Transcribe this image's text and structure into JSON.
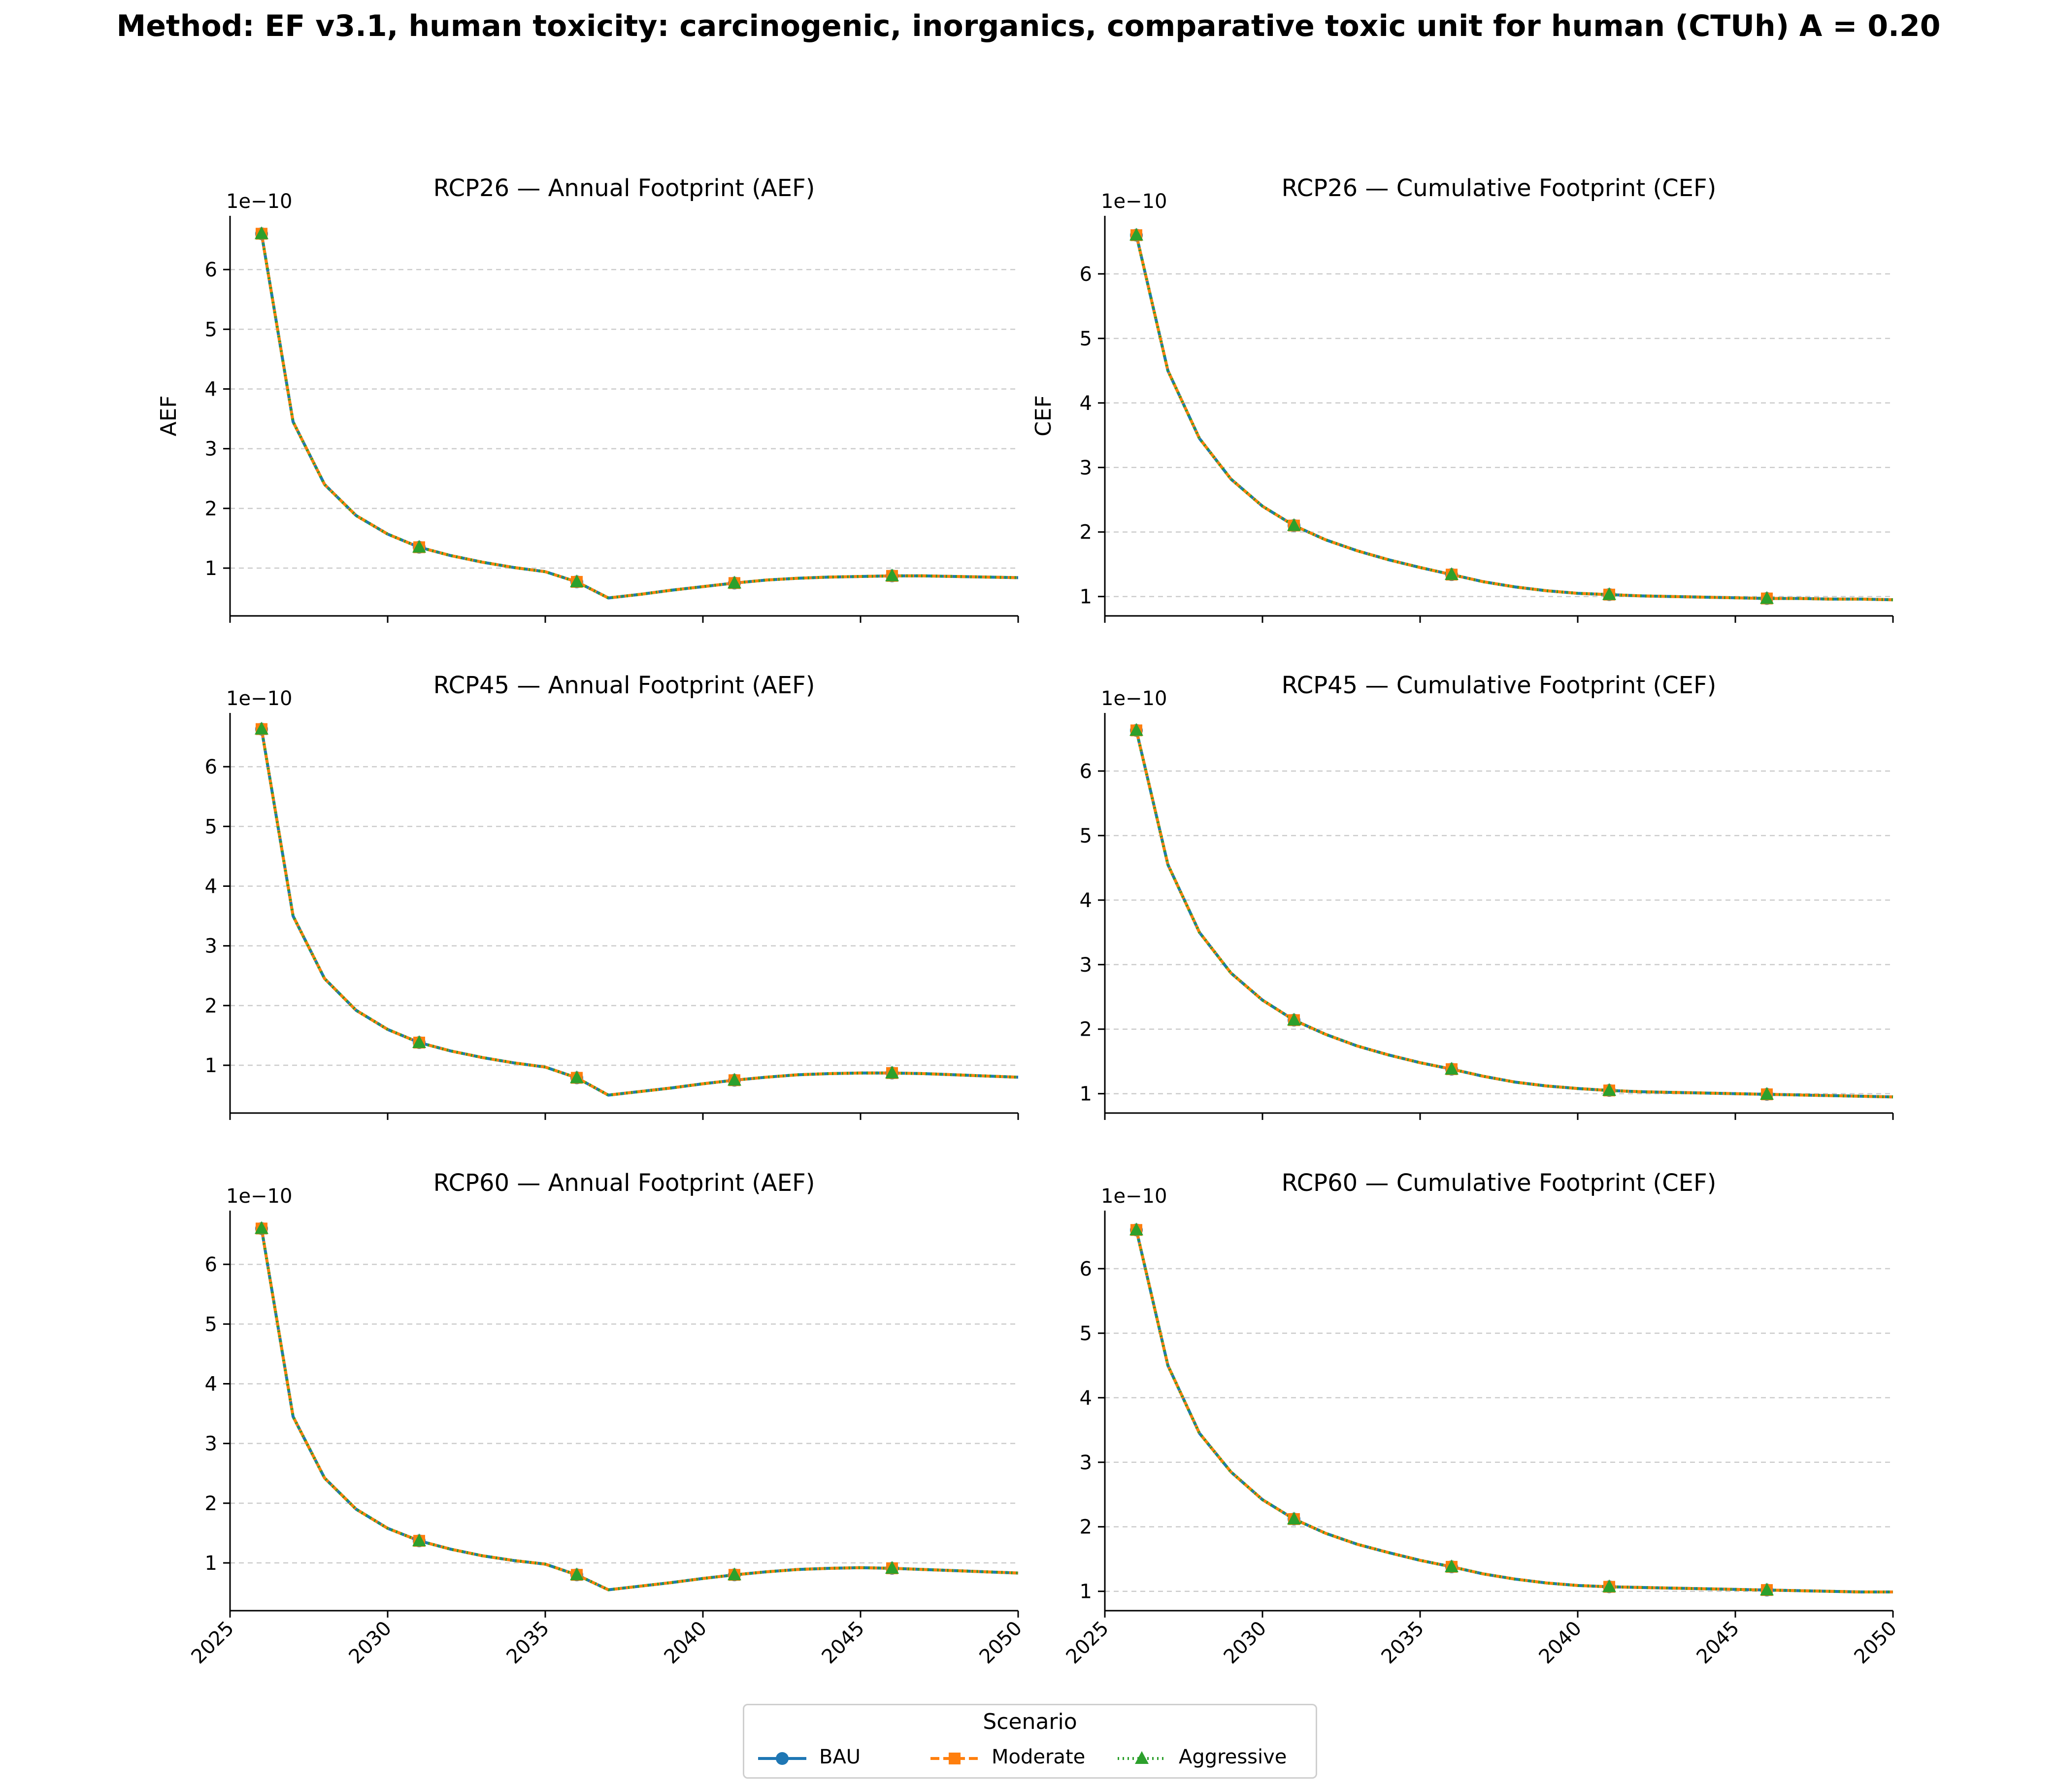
{
  "figure": {
    "title": "Method: EF v3.1, human toxicity: carcinogenic, inorganics, comparative toxic unit for human (CTUh) A = 0.20"
  },
  "legend": {
    "title": "Scenario",
    "entries": [
      {
        "label": "BAU",
        "color": "#1f77b4",
        "marker": "circle",
        "linestyle": "solid"
      },
      {
        "label": "Moderate",
        "color": "#ff7f0e",
        "marker": "square",
        "linestyle": "dashed"
      },
      {
        "label": "Aggressive",
        "color": "#2ca02c",
        "marker": "triangle",
        "linestyle": "dotted"
      }
    ]
  },
  "chart_data": [
    {
      "type": "line",
      "title": "RCP26 — Annual Footprint (AEF)",
      "xlabel": "",
      "ylabel": "AEF",
      "offset_text": "1e−10",
      "xlim": [
        2025,
        2050
      ],
      "ylim": [
        0.2,
        6.9
      ],
      "xticks": [
        2025,
        2030,
        2035,
        2040,
        2045,
        2050
      ],
      "yticks": [
        1,
        2,
        3,
        4,
        5,
        6
      ],
      "x": [
        2026,
        2027,
        2028,
        2029,
        2030,
        2031,
        2032,
        2033,
        2034,
        2035,
        2036,
        2037,
        2038,
        2039,
        2040,
        2041,
        2042,
        2043,
        2044,
        2045,
        2046,
        2047,
        2048,
        2049,
        2050
      ],
      "series": [
        {
          "name": "BAU",
          "values": [
            6.6,
            3.45,
            2.4,
            1.88,
            1.57,
            1.35,
            1.21,
            1.1,
            1.01,
            0.94,
            0.77,
            0.5,
            0.56,
            0.63,
            0.69,
            0.75,
            0.8,
            0.83,
            0.85,
            0.86,
            0.87,
            0.87,
            0.86,
            0.85,
            0.84
          ]
        },
        {
          "name": "Moderate",
          "values": [
            6.6,
            3.45,
            2.4,
            1.88,
            1.57,
            1.35,
            1.21,
            1.1,
            1.01,
            0.94,
            0.77,
            0.5,
            0.56,
            0.63,
            0.69,
            0.75,
            0.8,
            0.83,
            0.85,
            0.86,
            0.87,
            0.87,
            0.86,
            0.85,
            0.84
          ]
        },
        {
          "name": "Aggressive",
          "values": [
            6.6,
            3.45,
            2.4,
            1.88,
            1.57,
            1.35,
            1.21,
            1.1,
            1.01,
            0.94,
            0.77,
            0.5,
            0.56,
            0.63,
            0.69,
            0.75,
            0.8,
            0.83,
            0.85,
            0.86,
            0.87,
            0.87,
            0.86,
            0.85,
            0.84
          ]
        }
      ],
      "grid": "y-dashed"
    },
    {
      "type": "line",
      "title": "RCP26 — Cumulative Footprint (CEF)",
      "xlabel": "",
      "ylabel": "CEF",
      "offset_text": "1e−10",
      "xlim": [
        2025,
        2050
      ],
      "ylim": [
        0.7,
        6.9
      ],
      "xticks": [
        2025,
        2030,
        2035,
        2040,
        2045,
        2050
      ],
      "yticks": [
        1,
        2,
        3,
        4,
        5,
        6
      ],
      "x": [
        2026,
        2027,
        2028,
        2029,
        2030,
        2031,
        2032,
        2033,
        2034,
        2035,
        2036,
        2037,
        2038,
        2039,
        2040,
        2041,
        2042,
        2043,
        2044,
        2045,
        2046,
        2047,
        2048,
        2049,
        2050
      ],
      "series": [
        {
          "name": "BAU",
          "values": [
            6.6,
            4.5,
            3.45,
            2.82,
            2.4,
            2.1,
            1.88,
            1.71,
            1.57,
            1.45,
            1.34,
            1.23,
            1.15,
            1.09,
            1.05,
            1.03,
            1.01,
            1.0,
            0.99,
            0.98,
            0.97,
            0.97,
            0.96,
            0.96,
            0.95
          ]
        },
        {
          "name": "Moderate",
          "values": [
            6.6,
            4.5,
            3.45,
            2.82,
            2.4,
            2.1,
            1.88,
            1.71,
            1.57,
            1.45,
            1.34,
            1.23,
            1.15,
            1.09,
            1.05,
            1.03,
            1.01,
            1.0,
            0.99,
            0.98,
            0.97,
            0.97,
            0.96,
            0.96,
            0.95
          ]
        },
        {
          "name": "Aggressive",
          "values": [
            6.6,
            4.5,
            3.45,
            2.82,
            2.4,
            2.1,
            1.88,
            1.71,
            1.57,
            1.45,
            1.34,
            1.23,
            1.15,
            1.09,
            1.05,
            1.03,
            1.01,
            1.0,
            0.99,
            0.98,
            0.97,
            0.97,
            0.96,
            0.96,
            0.95
          ]
        }
      ],
      "grid": "y-dashed"
    },
    {
      "type": "line",
      "title": "RCP45 — Annual Footprint (AEF)",
      "xlabel": "",
      "ylabel": "",
      "offset_text": "1e−10",
      "xlim": [
        2025,
        2050
      ],
      "ylim": [
        0.2,
        6.9
      ],
      "xticks": [
        2025,
        2030,
        2035,
        2040,
        2045,
        2050
      ],
      "yticks": [
        1,
        2,
        3,
        4,
        5,
        6
      ],
      "x": [
        2026,
        2027,
        2028,
        2029,
        2030,
        2031,
        2032,
        2033,
        2034,
        2035,
        2036,
        2037,
        2038,
        2039,
        2040,
        2041,
        2042,
        2043,
        2044,
        2045,
        2046,
        2047,
        2048,
        2049,
        2050
      ],
      "series": [
        {
          "name": "BAU",
          "values": [
            6.63,
            3.5,
            2.45,
            1.92,
            1.6,
            1.38,
            1.24,
            1.13,
            1.04,
            0.97,
            0.79,
            0.5,
            0.56,
            0.62,
            0.69,
            0.75,
            0.8,
            0.84,
            0.86,
            0.87,
            0.87,
            0.86,
            0.84,
            0.82,
            0.8
          ]
        },
        {
          "name": "Moderate",
          "values": [
            6.63,
            3.5,
            2.45,
            1.92,
            1.6,
            1.38,
            1.24,
            1.13,
            1.04,
            0.97,
            0.79,
            0.5,
            0.56,
            0.62,
            0.69,
            0.75,
            0.8,
            0.84,
            0.86,
            0.87,
            0.87,
            0.86,
            0.84,
            0.82,
            0.8
          ]
        },
        {
          "name": "Aggressive",
          "values": [
            6.63,
            3.5,
            2.45,
            1.92,
            1.6,
            1.38,
            1.24,
            1.13,
            1.04,
            0.97,
            0.79,
            0.5,
            0.56,
            0.62,
            0.69,
            0.75,
            0.8,
            0.84,
            0.86,
            0.87,
            0.87,
            0.86,
            0.84,
            0.82,
            0.8
          ]
        }
      ],
      "grid": "y-dashed"
    },
    {
      "type": "line",
      "title": "RCP45 — Cumulative Footprint (CEF)",
      "xlabel": "",
      "ylabel": "",
      "offset_text": "1e−10",
      "xlim": [
        2025,
        2050
      ],
      "ylim": [
        0.7,
        6.9
      ],
      "xticks": [
        2025,
        2030,
        2035,
        2040,
        2045,
        2050
      ],
      "yticks": [
        1,
        2,
        3,
        4,
        5,
        6
      ],
      "x": [
        2026,
        2027,
        2028,
        2029,
        2030,
        2031,
        2032,
        2033,
        2034,
        2035,
        2036,
        2037,
        2038,
        2039,
        2040,
        2041,
        2042,
        2043,
        2044,
        2045,
        2046,
        2047,
        2048,
        2049,
        2050
      ],
      "series": [
        {
          "name": "BAU",
          "values": [
            6.63,
            4.55,
            3.5,
            2.87,
            2.45,
            2.14,
            1.92,
            1.74,
            1.6,
            1.48,
            1.38,
            1.27,
            1.18,
            1.12,
            1.08,
            1.05,
            1.03,
            1.02,
            1.01,
            1.0,
            0.99,
            0.98,
            0.97,
            0.96,
            0.95
          ]
        },
        {
          "name": "Moderate",
          "values": [
            6.63,
            4.55,
            3.5,
            2.87,
            2.45,
            2.14,
            1.92,
            1.74,
            1.6,
            1.48,
            1.38,
            1.27,
            1.18,
            1.12,
            1.08,
            1.05,
            1.03,
            1.02,
            1.01,
            1.0,
            0.99,
            0.98,
            0.97,
            0.96,
            0.95
          ]
        },
        {
          "name": "Aggressive",
          "values": [
            6.63,
            4.55,
            3.5,
            2.87,
            2.45,
            2.14,
            1.92,
            1.74,
            1.6,
            1.48,
            1.38,
            1.27,
            1.18,
            1.12,
            1.08,
            1.05,
            1.03,
            1.02,
            1.01,
            1.0,
            0.99,
            0.98,
            0.97,
            0.96,
            0.95
          ]
        }
      ],
      "grid": "y-dashed"
    },
    {
      "type": "line",
      "title": "RCP60 — Annual Footprint (AEF)",
      "xlabel": "",
      "ylabel": "",
      "offset_text": "1e−10",
      "xlim": [
        2025,
        2050
      ],
      "ylim": [
        0.2,
        6.9
      ],
      "xticks": [
        2025,
        2030,
        2035,
        2040,
        2045,
        2050
      ],
      "yticks": [
        1,
        2,
        3,
        4,
        5,
        6
      ],
      "x": [
        2026,
        2027,
        2028,
        2029,
        2030,
        2031,
        2032,
        2033,
        2034,
        2035,
        2036,
        2037,
        2038,
        2039,
        2040,
        2041,
        2042,
        2043,
        2044,
        2045,
        2046,
        2047,
        2048,
        2049,
        2050
      ],
      "series": [
        {
          "name": "BAU",
          "values": [
            6.6,
            3.45,
            2.42,
            1.9,
            1.58,
            1.37,
            1.23,
            1.12,
            1.04,
            0.98,
            0.8,
            0.55,
            0.61,
            0.67,
            0.74,
            0.8,
            0.85,
            0.89,
            0.91,
            0.92,
            0.91,
            0.89,
            0.87,
            0.85,
            0.83
          ]
        },
        {
          "name": "Moderate",
          "values": [
            6.6,
            3.45,
            2.42,
            1.9,
            1.58,
            1.37,
            1.23,
            1.12,
            1.04,
            0.98,
            0.8,
            0.55,
            0.61,
            0.67,
            0.74,
            0.8,
            0.85,
            0.89,
            0.91,
            0.92,
            0.91,
            0.89,
            0.87,
            0.85,
            0.83
          ]
        },
        {
          "name": "Aggressive",
          "values": [
            6.6,
            3.45,
            2.42,
            1.9,
            1.58,
            1.37,
            1.23,
            1.12,
            1.04,
            0.98,
            0.8,
            0.55,
            0.61,
            0.67,
            0.74,
            0.8,
            0.85,
            0.89,
            0.91,
            0.92,
            0.91,
            0.89,
            0.87,
            0.85,
            0.83
          ]
        }
      ],
      "grid": "y-dashed"
    },
    {
      "type": "line",
      "title": "RCP60 — Cumulative Footprint (CEF)",
      "xlabel": "",
      "ylabel": "",
      "offset_text": "1e−10",
      "xlim": [
        2025,
        2050
      ],
      "ylim": [
        0.7,
        6.9
      ],
      "xticks": [
        2025,
        2030,
        2035,
        2040,
        2045,
        2050
      ],
      "yticks": [
        1,
        2,
        3,
        4,
        5,
        6
      ],
      "x": [
        2026,
        2027,
        2028,
        2029,
        2030,
        2031,
        2032,
        2033,
        2034,
        2035,
        2036,
        2037,
        2038,
        2039,
        2040,
        2041,
        2042,
        2043,
        2044,
        2045,
        2046,
        2047,
        2048,
        2049,
        2050
      ],
      "series": [
        {
          "name": "BAU",
          "values": [
            6.6,
            4.5,
            3.45,
            2.85,
            2.42,
            2.12,
            1.9,
            1.73,
            1.6,
            1.48,
            1.38,
            1.27,
            1.19,
            1.13,
            1.09,
            1.07,
            1.06,
            1.05,
            1.04,
            1.03,
            1.02,
            1.01,
            1.0,
            0.99,
            0.99
          ]
        },
        {
          "name": "Moderate",
          "values": [
            6.6,
            4.5,
            3.45,
            2.85,
            2.42,
            2.12,
            1.9,
            1.73,
            1.6,
            1.48,
            1.38,
            1.27,
            1.19,
            1.13,
            1.09,
            1.07,
            1.06,
            1.05,
            1.04,
            1.03,
            1.02,
            1.01,
            1.0,
            0.99,
            0.99
          ]
        },
        {
          "name": "Aggressive",
          "values": [
            6.6,
            4.5,
            3.45,
            2.85,
            2.42,
            2.12,
            1.9,
            1.73,
            1.6,
            1.48,
            1.38,
            1.27,
            1.19,
            1.13,
            1.09,
            1.07,
            1.06,
            1.05,
            1.04,
            1.03,
            1.02,
            1.01,
            1.0,
            0.99,
            0.99
          ]
        }
      ],
      "grid": "y-dashed"
    }
  ]
}
